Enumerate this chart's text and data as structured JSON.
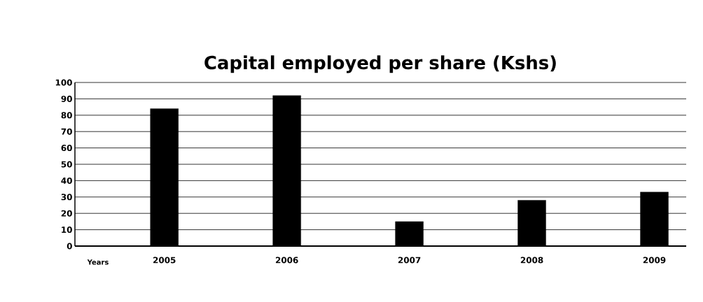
{
  "chart_data": {
    "type": "bar",
    "title": "Capital employed per share (Kshs)",
    "xlabel": "Years",
    "categories": [
      "2005",
      "2006",
      "2007",
      "2008",
      "2009"
    ],
    "values": [
      84,
      92,
      15,
      28,
      33
    ],
    "color": "#000000",
    "ylim": [
      0,
      100
    ],
    "yticks": [
      0,
      10,
      20,
      30,
      40,
      50,
      60,
      70,
      80,
      90,
      100
    ],
    "grid": "y"
  }
}
